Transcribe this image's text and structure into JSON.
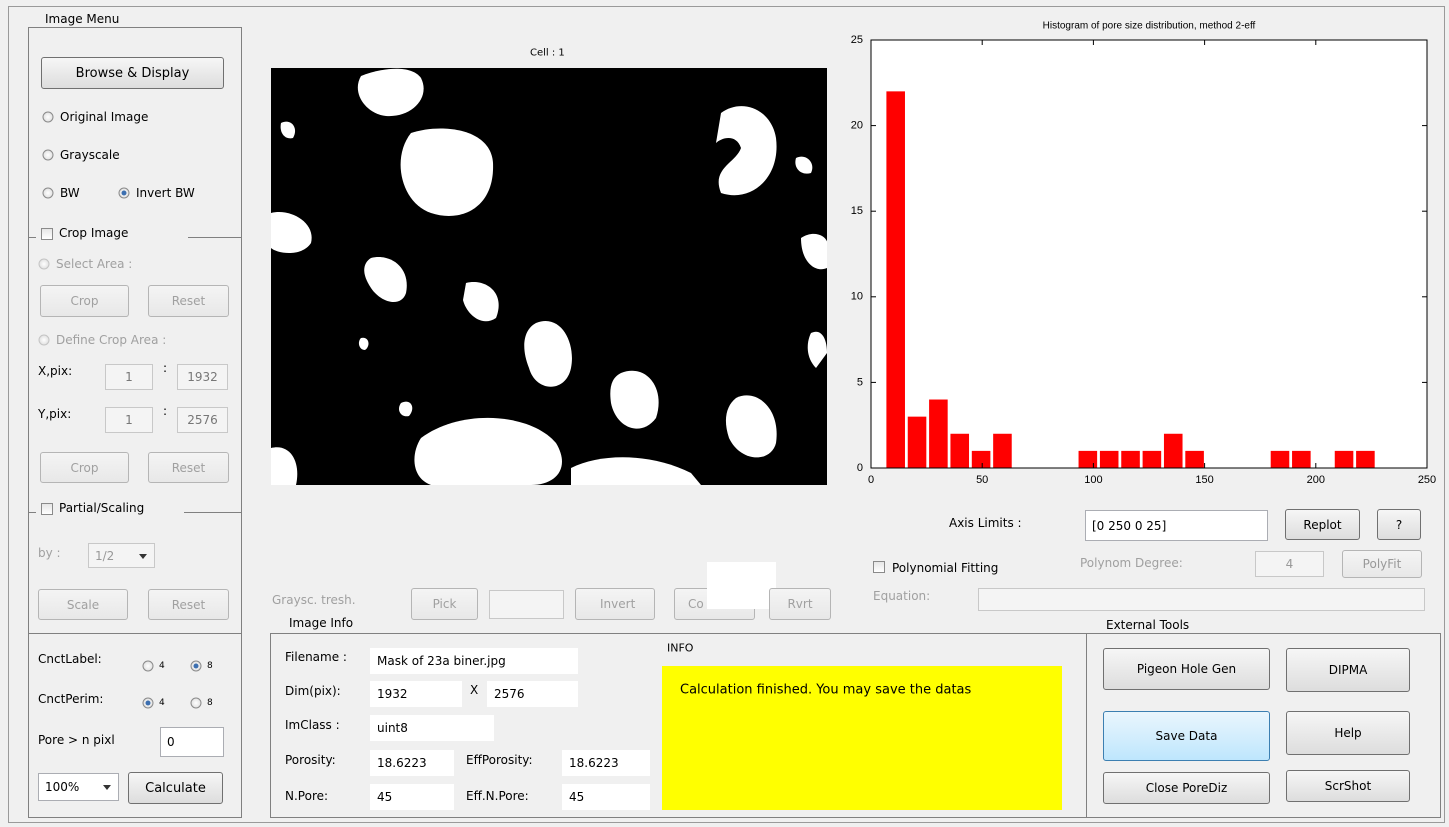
{
  "image_menu": {
    "title": "Image Menu",
    "browse": "Browse & Display",
    "original": "Original Image",
    "grayscale": "Grayscale",
    "bw": "BW",
    "invert_bw": "Invert BW"
  },
  "crop": {
    "title": "Crop Image",
    "select_area": "Select Area :",
    "crop": "Crop",
    "reset": "Reset",
    "define_area": "Define Crop Area :",
    "x_label": "X,pix:",
    "x_from": "1",
    "x_sep": ":",
    "x_to": "1932",
    "y_label": "Y,pix:",
    "y_from": "1",
    "y_sep": ":",
    "y_to": "2576",
    "crop2": "Crop",
    "reset2": "Reset"
  },
  "scaling": {
    "title": "Partial/Scaling",
    "by": "by :",
    "factor": "1/2",
    "scale": "Scale",
    "reset": "Reset"
  },
  "connectivity": {
    "label": "CnctLabel:",
    "label_4": "4",
    "label_8": "8",
    "perim": "CnctPerim:",
    "perim_4": "4",
    "perim_8": "8",
    "pore_min": "Pore > n pixl",
    "pore_min_value": "0",
    "zoom": "100%",
    "calculate": "Calculate"
  },
  "image": {
    "title": "Cell : 1"
  },
  "threshold": {
    "label": "Graysc. tresh.",
    "pick": "Pick",
    "invert": "Invert",
    "convert": "Co",
    "revert": "Rvrt"
  },
  "image_info": {
    "title": "Image Info",
    "filename_label": "Filename :",
    "filename": "Mask of 23a biner.jpg",
    "dim_label": "Dim(pix):",
    "dim_w": "1932",
    "dim_sep": "X",
    "dim_h": "2576",
    "class_label": "ImClass :",
    "class": "uint8",
    "porosity_label": "Porosity:",
    "porosity": "18.6223",
    "eff_porosity_label": "EffPorosity:",
    "eff_porosity": "18.6223",
    "npore_label": "N.Pore:",
    "npore": "45",
    "eff_npore_label": "Eff.N.Pore:",
    "eff_npore": "45"
  },
  "info": {
    "title": "INFO",
    "message": "Calculation finished. You may save the datas"
  },
  "external_tools": {
    "title": "External Tools",
    "pigeon": "Pigeon Hole Gen",
    "dipma": "DIPMA",
    "save": "Save Data",
    "help": "Help",
    "close": "Close PoreDiz",
    "screenshot": "ScrShot"
  },
  "axis_controls": {
    "label": "Axis Limits :",
    "limits": "[0 250 0 25]",
    "replot": "Replot",
    "help": "?",
    "poly_fit": "Polynomial Fitting",
    "degree_label": "Polynom Degree:",
    "degree": "4",
    "polyfit": "PolyFit",
    "equation": "Equation:"
  },
  "chart_data": {
    "type": "histogram",
    "title": "Histogram of pore size distribution, method 2-eff",
    "bins": [
      6.3,
      15.9,
      25.5,
      35.1,
      44.7,
      54.3,
      63.9,
      73.5,
      83.1,
      92.7,
      102.3,
      111.9,
      121.5,
      131.1,
      140.7,
      150.3,
      159.9,
      169.5,
      179.1,
      188.7,
      198.3,
      207.9,
      217.5,
      227.1
    ],
    "values": [
      22,
      3,
      4,
      2,
      1,
      2,
      0,
      0,
      0,
      1,
      1,
      1,
      1,
      2,
      1,
      0,
      0,
      0,
      1,
      1,
      0,
      1,
      1
    ],
    "color": "#ff0000",
    "xlim": [
      0,
      250
    ],
    "xticks": [
      0,
      50,
      100,
      150,
      200,
      250
    ],
    "ylim": [
      0,
      25
    ],
    "yticks": [
      0,
      5,
      10,
      15,
      20,
      25
    ],
    "grid": false
  }
}
